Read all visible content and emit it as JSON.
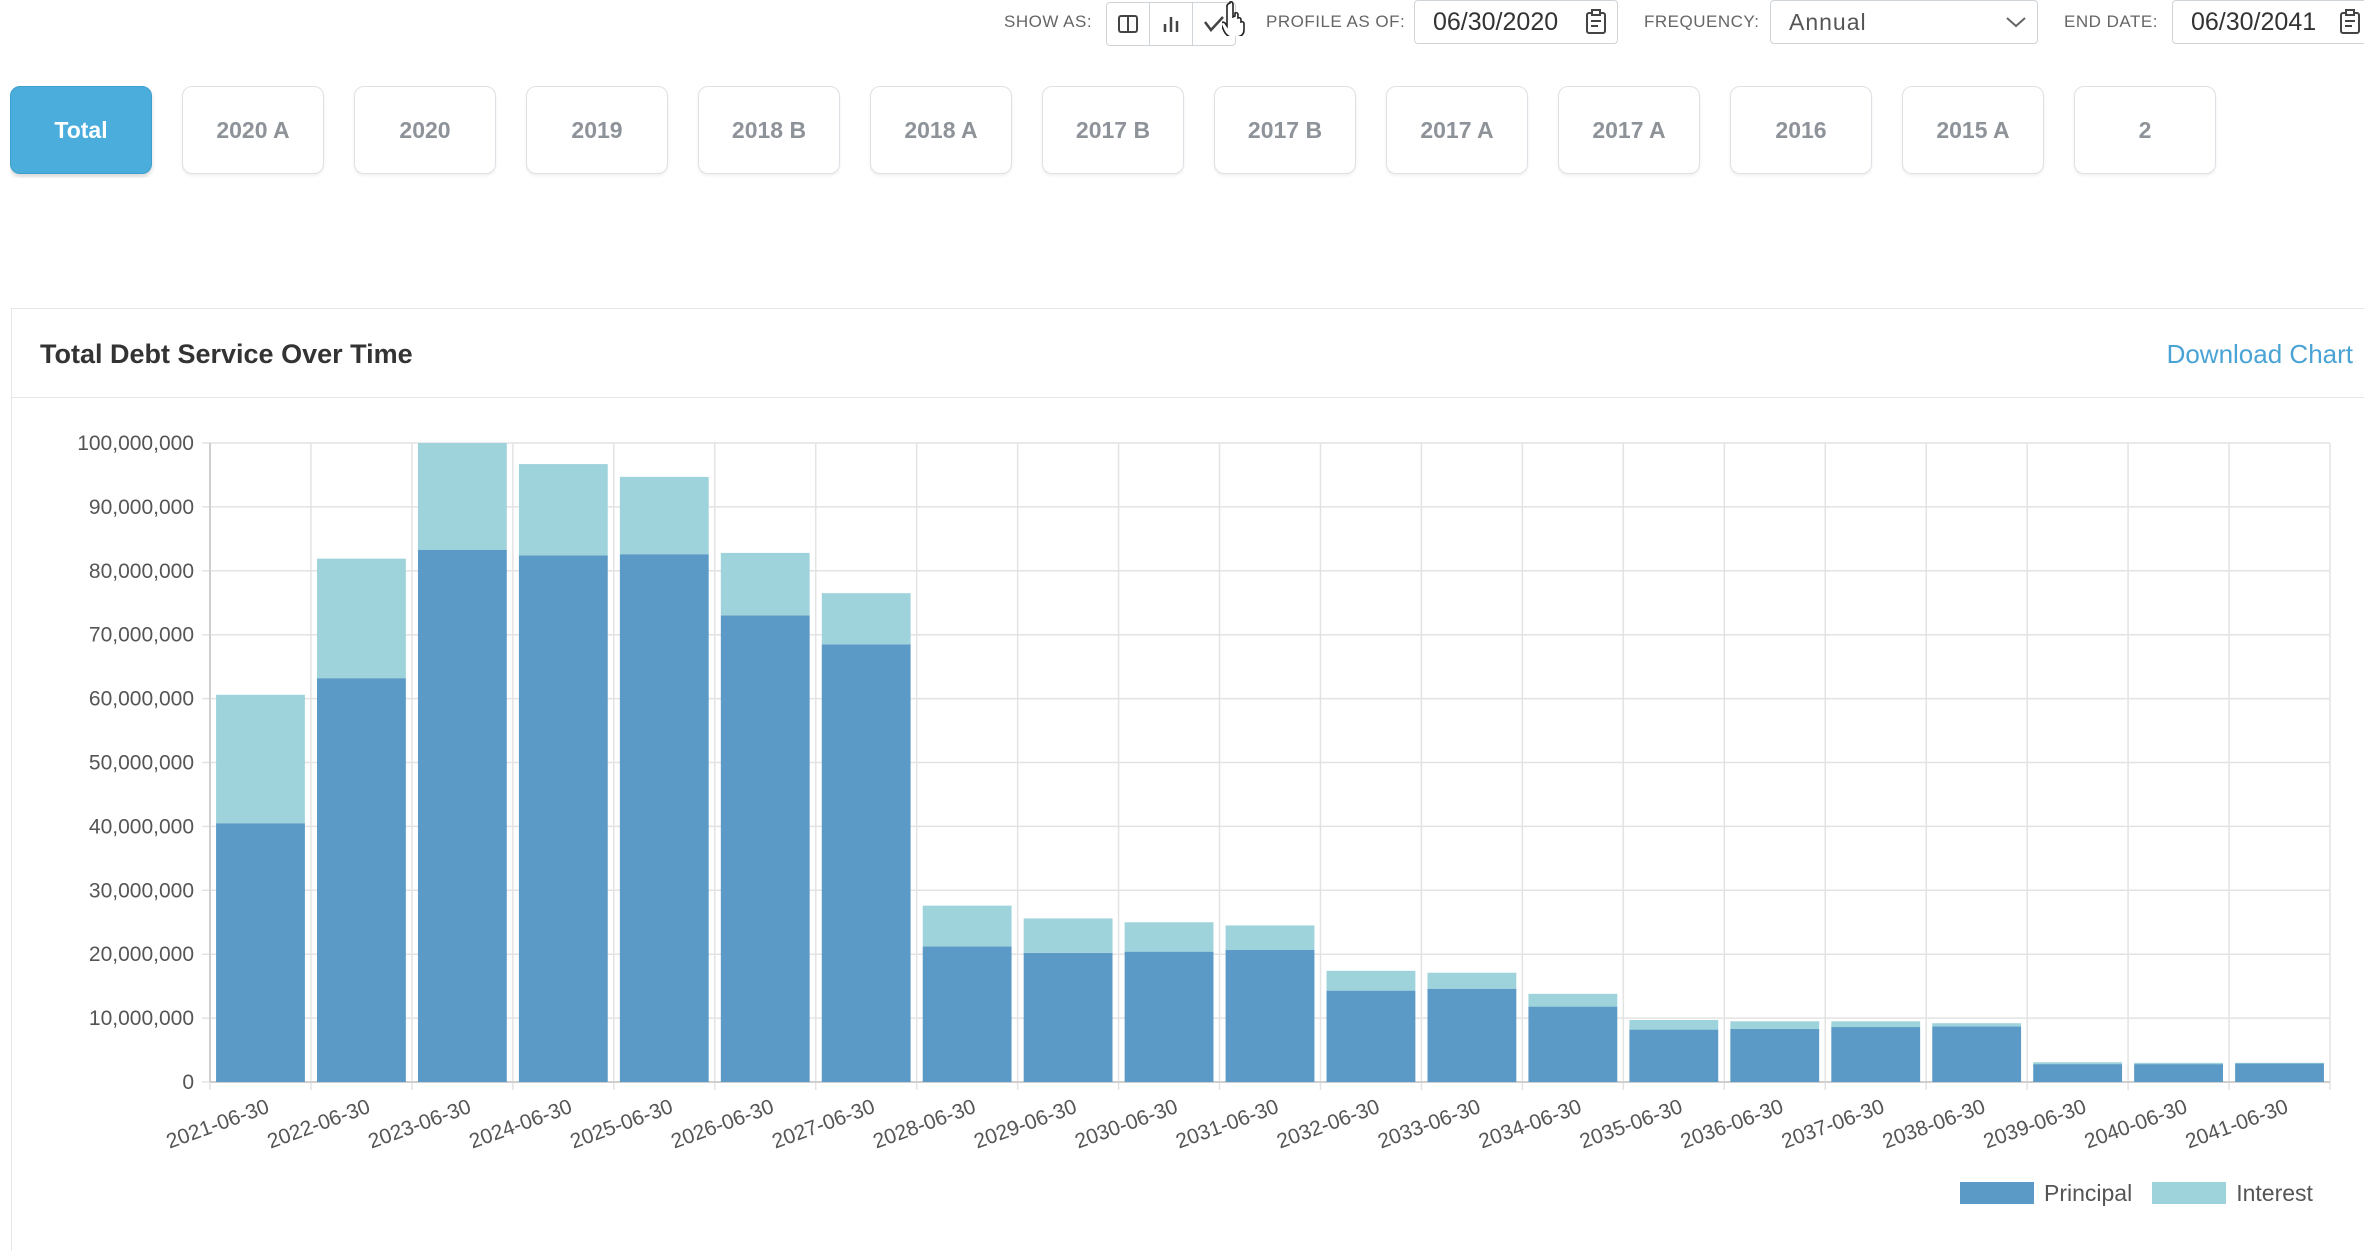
{
  "toolbar": {
    "show_as_label": "SHOW AS:",
    "profile_label": "PROFILE AS OF:",
    "profile_value": "06/30/2020",
    "frequency_label": "FREQUENCY:",
    "frequency_value": "Annual",
    "end_date_label": "END DATE:",
    "end_date_value": "06/30/2041",
    "view_icons": [
      "table-view-icon",
      "bar-chart-view-icon",
      "line-chart-view-icon"
    ]
  },
  "tabs": [
    "Total",
    "2020 A",
    "2020",
    "2019",
    "2018 B",
    "2018 A",
    "2017 B",
    "2017 B",
    "2017 A",
    "2017 A",
    "2016",
    "2015 A",
    "2"
  ],
  "active_tab": "Total",
  "card": {
    "title": "Total Debt Service Over Time",
    "download_label": "Download Chart"
  },
  "colors": {
    "accent": "#4aaddc",
    "principal": "#5b9ac6",
    "interest": "#9fd3db",
    "link": "#4aa3d4"
  },
  "chart_data": {
    "type": "bar",
    "stacked": true,
    "categories": [
      "2021-06-30",
      "2022-06-30",
      "2023-06-30",
      "2024-06-30",
      "2025-06-30",
      "2026-06-30",
      "2027-06-30",
      "2028-06-30",
      "2029-06-30",
      "2030-06-30",
      "2031-06-30",
      "2032-06-30",
      "2033-06-30",
      "2034-06-30",
      "2035-06-30",
      "2036-06-30",
      "2037-06-30",
      "2038-06-30",
      "2039-06-30",
      "2040-06-30",
      "2041-06-30"
    ],
    "series": [
      {
        "name": "Principal",
        "values": [
          40500000,
          63200000,
          83300000,
          82400000,
          82600000,
          73000000,
          68500000,
          21200000,
          20200000,
          20400000,
          20700000,
          14300000,
          14600000,
          11800000,
          8200000,
          8300000,
          8600000,
          8700000,
          2800000,
          2800000,
          2900000
        ]
      },
      {
        "name": "Interest",
        "values": [
          20100000,
          18700000,
          16700000,
          14300000,
          12100000,
          9800000,
          8000000,
          6400000,
          5400000,
          4600000,
          3800000,
          3100000,
          2500000,
          2000000,
          1500000,
          1200000,
          900000,
          500000,
          300000,
          200000,
          100000
        ]
      }
    ],
    "title": "Total Debt Service Over Time",
    "xlabel": "",
    "ylabel": "",
    "ylim": [
      0,
      100000000
    ],
    "yticks": [
      "0",
      "10,000,000",
      "20,000,000",
      "30,000,000",
      "40,000,000",
      "50,000,000",
      "60,000,000",
      "70,000,000",
      "80,000,000",
      "90,000,000",
      "100,000,000"
    ],
    "grid": true,
    "legend_position": "bottom-right"
  }
}
